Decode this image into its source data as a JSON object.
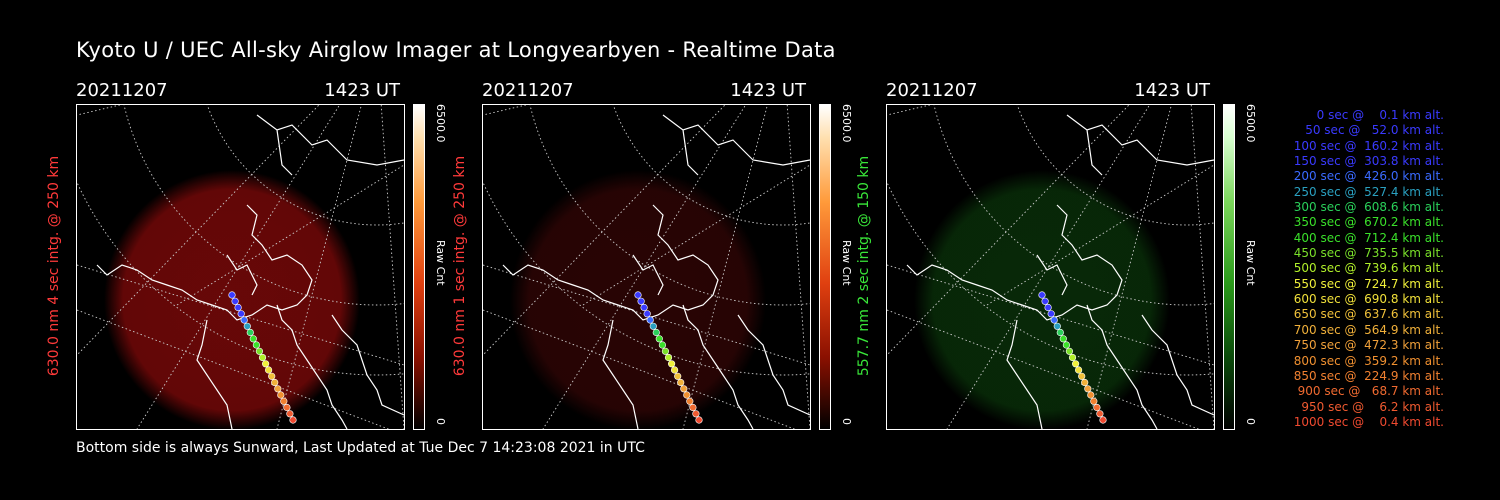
{
  "title": "Kyoto U / UEC All-sky Airglow Imager at Longyearbyen - Realtime Data",
  "footer": "Bottom side is always Sunward, Last Updated at Tue Dec  7 14:23:08 2021 in UTC",
  "panels": [
    {
      "date": "20211207",
      "time": "1423 UT",
      "ylabel": "630.0 nm 4 sec intg. @ 250 km",
      "ylabel_color": "#ff3a3a",
      "cbar_max": "6500.0",
      "cbar_unit": "Raw Cnt",
      "cbar_min": "0",
      "glow_color": "#8a0a0a",
      "glow_opacity": 0.75,
      "cbar_gradient": "linear-gradient(to bottom,#ffffff 0%,#ffe0b0 10%,#ff9a3a 30%,#e04010 55%,#8a1000 78%,#000 100%)"
    },
    {
      "date": "20211207",
      "time": "1423 UT",
      "ylabel": "630.0 nm 1 sec intg. @ 250 km",
      "ylabel_color": "#ff3a3a",
      "cbar_max": "6500.0",
      "cbar_unit": "Raw Cnt",
      "cbar_min": "0",
      "glow_color": "#3a0606",
      "glow_opacity": 0.7,
      "cbar_gradient": "linear-gradient(to bottom,#ffffff 0%,#ffe0b0 10%,#ff9a3a 30%,#e04010 55%,#8a1000 78%,#000 100%)"
    },
    {
      "date": "20211207",
      "time": "1423 UT",
      "ylabel": "557.7 nm 2 sec intg. @ 150 km",
      "ylabel_color": "#39e639",
      "cbar_max": "6500.0",
      "cbar_unit": "Raw Cnt",
      "cbar_min": "0",
      "glow_color": "#0b3a0b",
      "glow_opacity": 0.7,
      "cbar_gradient": "linear-gradient(to bottom,#ffffff 0%,#d8ffd0 10%,#7ad65a 30%,#2a9a1a 55%,#0a4a0a 78%,#000 100%)"
    }
  ],
  "legend": [
    {
      "text": "   0 sec @    0.1 km alt.",
      "color": "#3a3aff"
    },
    {
      "text": "  50 sec @   52.0 km alt.",
      "color": "#3a3aff"
    },
    {
      "text": " 100 sec @  160.2 km alt.",
      "color": "#3a3aff"
    },
    {
      "text": " 150 sec @  303.8 km alt.",
      "color": "#3a3aff"
    },
    {
      "text": " 200 sec @  426.0 km alt.",
      "color": "#3a6aff"
    },
    {
      "text": " 250 sec @  527.4 km alt.",
      "color": "#2aa0c0"
    },
    {
      "text": " 300 sec @  608.6 km alt.",
      "color": "#2ad05a"
    },
    {
      "text": " 350 sec @  670.2 km alt.",
      "color": "#3ae02a"
    },
    {
      "text": " 400 sec @  712.4 km alt.",
      "color": "#3ae02a"
    },
    {
      "text": " 450 sec @  735.5 km alt.",
      "color": "#7ae02a"
    },
    {
      "text": " 500 sec @  739.6 km alt.",
      "color": "#b0f02a"
    },
    {
      "text": " 550 sec @  724.7 km alt.",
      "color": "#f0f03a"
    },
    {
      "text": " 600 sec @  690.8 km alt.",
      "color": "#f0e03a"
    },
    {
      "text": " 650 sec @  637.6 km alt.",
      "color": "#f0c03a"
    },
    {
      "text": " 700 sec @  564.9 km alt.",
      "color": "#f0b03a"
    },
    {
      "text": " 750 sec @  472.3 km alt.",
      "color": "#f0a03a"
    },
    {
      "text": " 800 sec @  359.2 km alt.",
      "color": "#f09030"
    },
    {
      "text": " 850 sec @  224.9 km alt.",
      "color": "#f08030"
    },
    {
      "text": " 900 sec @   68.7 km alt.",
      "color": "#f06a30"
    },
    {
      "text": " 950 sec @    6.2 km alt.",
      "color": "#f05a30"
    },
    {
      "text": "1000 sec @    0.4 km alt.",
      "color": "#f04a30"
    }
  ]
}
